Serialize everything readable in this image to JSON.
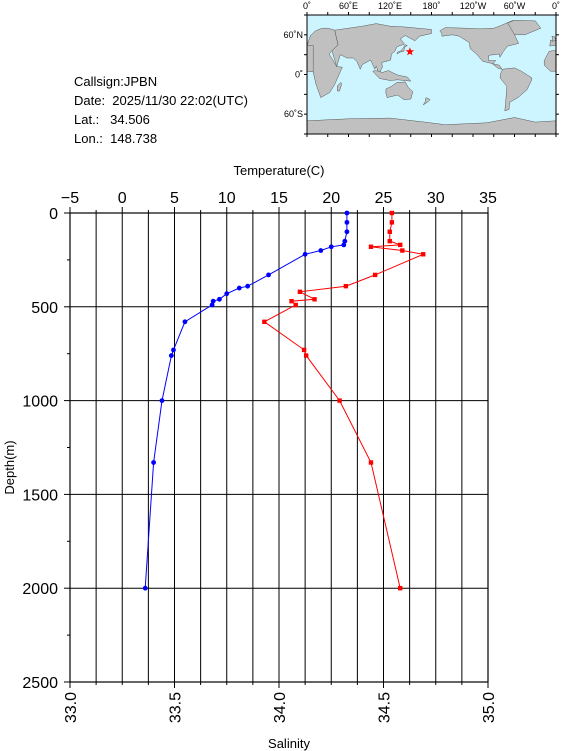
{
  "station": {
    "callsign": "Callsign:JPBN",
    "date": "Date:  2025/11/30 22:02(UTC)",
    "lat": "Lat.:   34.506",
    "lon": "Lon.:  148.738"
  },
  "map": {
    "top_ticks": [
      "0˚",
      "60˚E",
      "120˚E",
      "180˚",
      "120˚W",
      "60˚W",
      "0˚"
    ],
    "left_ticks": [
      "60˚N",
      "0˚",
      "60˚S"
    ],
    "ocean_color": "#cdf5ff",
    "land_color": "#c0c0c0",
    "marker_color": "#ff0000",
    "station_lat": 34.506,
    "station_lon": 148.738
  },
  "chart_data": {
    "type": "line",
    "top_axis": {
      "label": "Temperature(C)",
      "ticks": [
        "−5",
        "0",
        "5",
        "10",
        "15",
        "20",
        "25",
        "30",
        "35"
      ],
      "range": [
        -5,
        35
      ]
    },
    "bottom_axis": {
      "label": "Salinity",
      "ticks": [
        "33.0",
        "33.5",
        "34.0",
        "34.5",
        "35.0"
      ],
      "range": [
        33.0,
        35.0
      ]
    },
    "left_axis": {
      "label": "Depth(m)",
      "ticks": [
        "0",
        "500",
        "1000",
        "1500",
        "2000",
        "2500"
      ],
      "range": [
        0,
        2500
      ],
      "inverted": true
    },
    "grid": true,
    "series": [
      {
        "axis": "temperature",
        "color": "#0000ff",
        "points": [
          [
            21.5,
            0
          ],
          [
            21.5,
            50
          ],
          [
            21.5,
            100
          ],
          [
            21.3,
            150
          ],
          [
            21.2,
            170
          ],
          [
            20.0,
            180
          ],
          [
            19.0,
            200
          ],
          [
            17.5,
            220
          ],
          [
            14.0,
            330
          ],
          [
            12.0,
            390
          ],
          [
            11.2,
            400
          ],
          [
            10.0,
            430
          ],
          [
            9.3,
            460
          ],
          [
            8.7,
            470
          ],
          [
            8.6,
            490
          ],
          [
            6.0,
            580
          ],
          [
            4.9,
            730
          ],
          [
            4.7,
            760
          ],
          [
            3.8,
            1000
          ],
          [
            3.0,
            1330
          ],
          [
            2.2,
            2000
          ]
        ]
      },
      {
        "axis": "salinity",
        "color": "#ff0000",
        "points": [
          [
            34.54,
            0
          ],
          [
            34.54,
            50
          ],
          [
            34.53,
            100
          ],
          [
            34.53,
            150
          ],
          [
            34.58,
            170
          ],
          [
            34.44,
            180
          ],
          [
            34.59,
            200
          ],
          [
            34.69,
            220
          ],
          [
            34.46,
            330
          ],
          [
            34.32,
            390
          ],
          [
            34.1,
            420
          ],
          [
            34.17,
            460
          ],
          [
            34.06,
            470
          ],
          [
            34.08,
            490
          ],
          [
            33.93,
            580
          ],
          [
            34.12,
            730
          ],
          [
            34.13,
            760
          ],
          [
            34.29,
            1000
          ],
          [
            34.44,
            1330
          ],
          [
            34.58,
            2000
          ]
        ]
      }
    ]
  }
}
